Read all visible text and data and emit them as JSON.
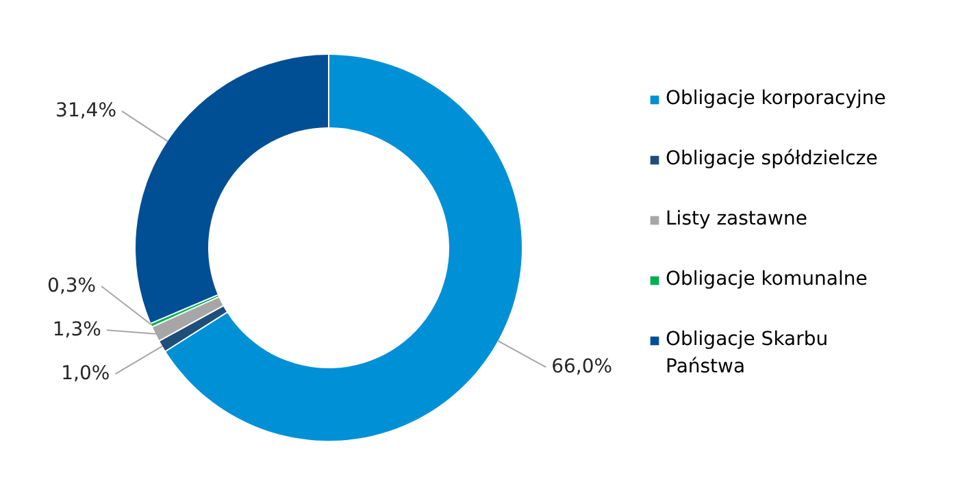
{
  "chart_data": {
    "type": "donut",
    "categories": [
      "Obligacje korporacyjne",
      "Obligacje spółdzielcze",
      "Listy zastawne",
      "Obligacje komunalne",
      "Obligacje Skarbu Państwa"
    ],
    "values": [
      66.0,
      1.0,
      1.3,
      0.3,
      31.4
    ],
    "colors": [
      "#0090d6",
      "#1f4e79",
      "#a6a6a6",
      "#00b050",
      "#004f95"
    ],
    "value_labels": [
      "66,0%",
      "1,0%",
      "1,3%",
      "0,3%",
      "31,4%"
    ],
    "legend": "right"
  }
}
